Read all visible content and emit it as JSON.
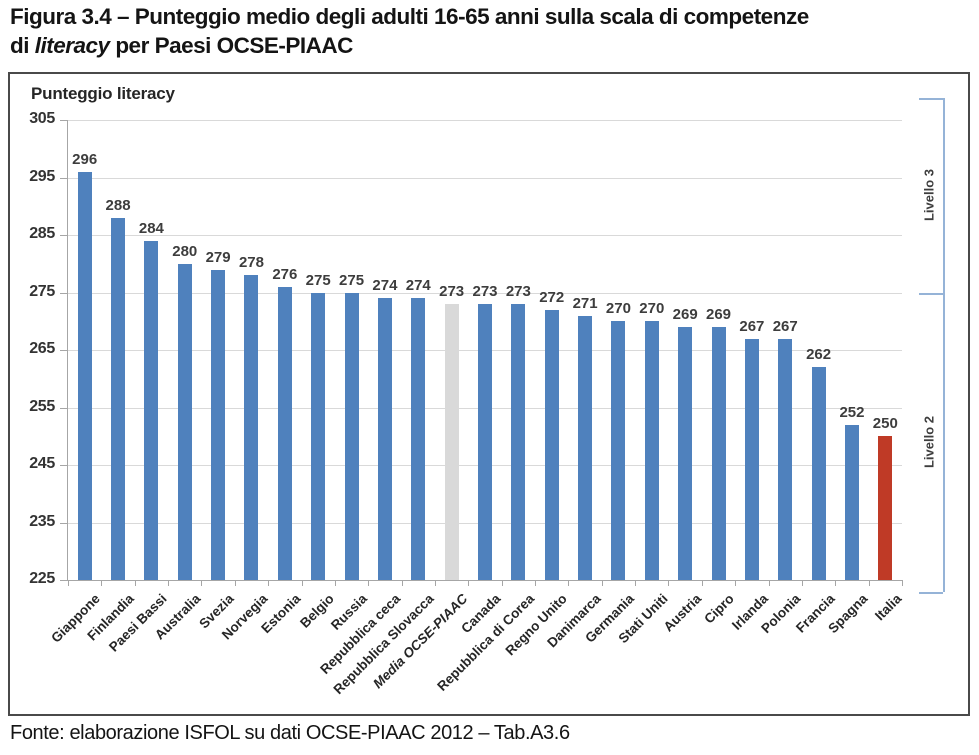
{
  "figure": {
    "title_line1": "Figura 3.4 – Punteggio medio degli adulti 16-65 anni sulla scala di competenze",
    "title_line2_prefix": "di ",
    "title_line2_italic": "literacy",
    "title_line2_suffix": " per Paesi OCSE-PIAAC",
    "source": "Fonte: elaborazione ISFOL su dati OCSE-PIAAC 2012 – Tab.A3.6"
  },
  "chart_data": {
    "type": "bar",
    "axis_title": "Punteggio literacy",
    "ylim": [
      225,
      305
    ],
    "yticks": [
      305,
      295,
      285,
      275,
      265,
      255,
      245,
      235,
      225
    ],
    "grid": true,
    "legend": "none",
    "categories": [
      "Giappone",
      "Finlandia",
      "Paesi Bassi",
      "Australia",
      "Svezia",
      "Norvegia",
      "Estonia",
      "Belgio",
      "Russia",
      "Repubblica ceca",
      "Repubblica Slovacca",
      "Media OCSE-PIAAC",
      "Canada",
      "Repubblica di Corea",
      "Regno Unito",
      "Danimarca",
      "Germania",
      "Stati Uniti",
      "Austria",
      "Cipro",
      "Irlanda",
      "Polonia",
      "Francia",
      "Spagna",
      "Italia"
    ],
    "bars": [
      {
        "label": "Giappone",
        "value": 296,
        "color": "blue"
      },
      {
        "label": "Finlandia",
        "value": 288,
        "color": "blue"
      },
      {
        "label": "Paesi Bassi",
        "value": 284,
        "color": "blue"
      },
      {
        "label": "Australia",
        "value": 280,
        "color": "blue"
      },
      {
        "label": "Svezia",
        "value": 279,
        "color": "blue"
      },
      {
        "label": "Norvegia",
        "value": 278,
        "color": "blue"
      },
      {
        "label": "Estonia",
        "value": 276,
        "color": "blue"
      },
      {
        "label": "Belgio",
        "value": 275,
        "color": "blue"
      },
      {
        "label": "Russia",
        "value": 275,
        "color": "blue"
      },
      {
        "label": "Repubblica ceca",
        "value": 274,
        "color": "blue"
      },
      {
        "label": "Repubblica Slovacca",
        "value": 274,
        "color": "blue"
      },
      {
        "label": "Media OCSE-PIAAC",
        "value": 273,
        "color": "gray",
        "italic": true
      },
      {
        "label": "Canada",
        "value": 273,
        "color": "blue"
      },
      {
        "label": "Repubblica di Corea",
        "value": 273,
        "color": "blue"
      },
      {
        "label": "Regno Unito",
        "value": 272,
        "color": "blue"
      },
      {
        "label": "Danimarca",
        "value": 271,
        "color": "blue"
      },
      {
        "label": "Germania",
        "value": 270,
        "color": "blue"
      },
      {
        "label": "Stati Uniti",
        "value": 270,
        "color": "blue"
      },
      {
        "label": "Austria",
        "value": 269,
        "color": "blue"
      },
      {
        "label": "Cipro",
        "value": 269,
        "color": "blue"
      },
      {
        "label": "Irlanda",
        "value": 267,
        "color": "blue"
      },
      {
        "label": "Polonia",
        "value": 267,
        "color": "blue"
      },
      {
        "label": "Francia",
        "value": 262,
        "color": "blue"
      },
      {
        "label": "Spagna",
        "value": 252,
        "color": "blue"
      },
      {
        "label": "Italia",
        "value": 250,
        "color": "red"
      }
    ],
    "colors": {
      "blue": "#4f81bd",
      "gray": "#d9d9d9",
      "red": "#bf3a26"
    },
    "bracket_color": "#95b3d7",
    "level_brackets": [
      {
        "label": "Livello 3",
        "from": 275,
        "to": 305
      },
      {
        "label": "Livello 2",
        "from": 225,
        "to": 275
      }
    ]
  }
}
